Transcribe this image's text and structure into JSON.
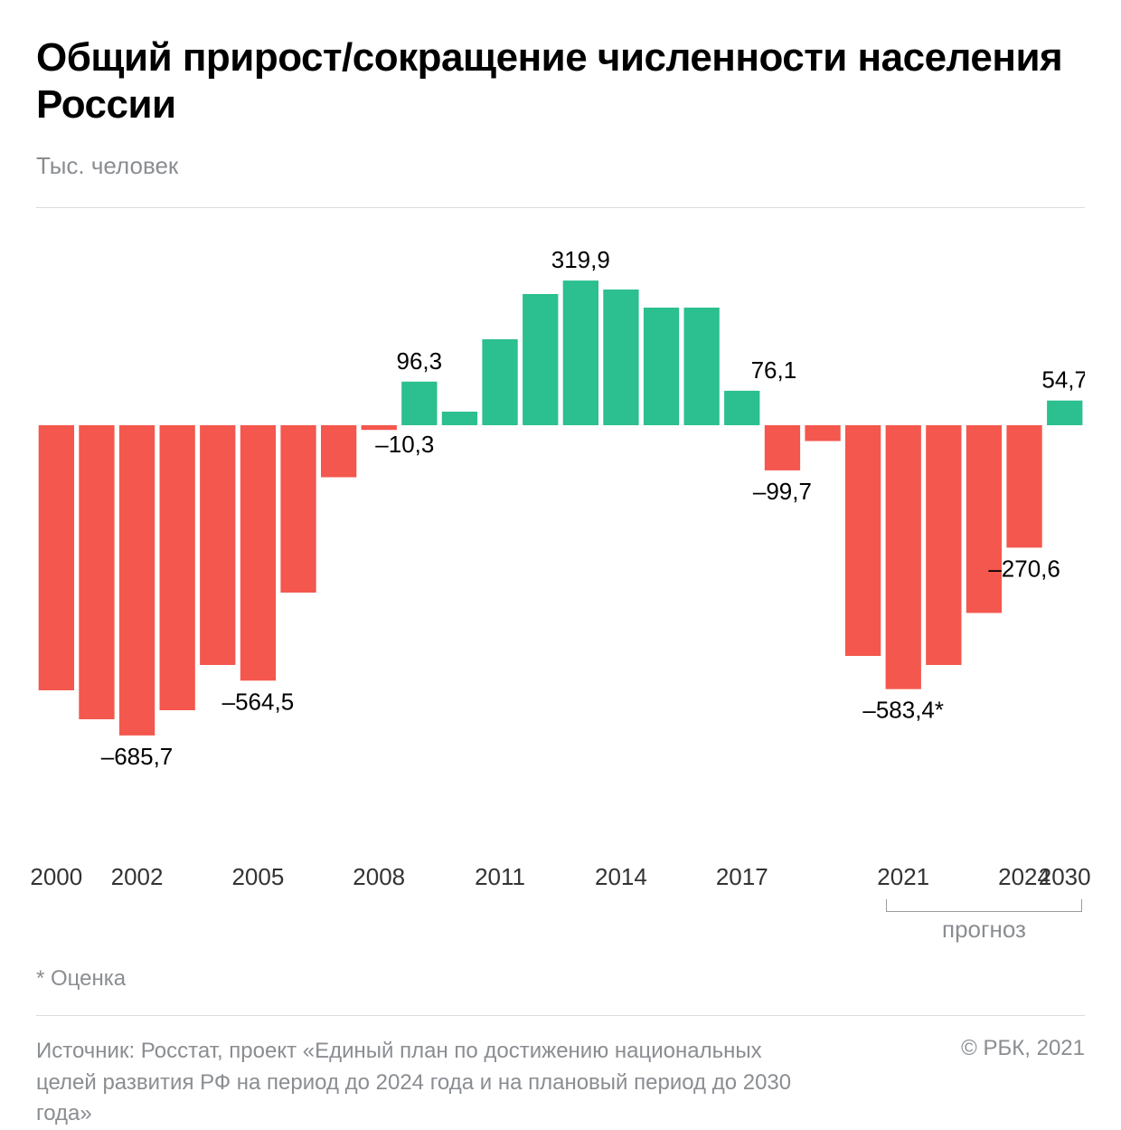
{
  "title": "Общий прирост/сокращение численности населения России",
  "subtitle": "Тыс. человек",
  "estimate_note": "* Оценка",
  "source_text": "Источник: Росстат, проект «Единый план по достижению национальных целей развития РФ на период до 2024 года и на плановый период до 2030 года»",
  "copyright": "© РБК, 2021",
  "forecast_label": "прогноз",
  "chart": {
    "type": "bar",
    "background_color": "#ffffff",
    "colors": {
      "positive": "#2cbf8f",
      "negative": "#f4574d"
    },
    "ylim": [
      -800,
      400
    ],
    "title_fontsize": 44,
    "label_fontsize": 26,
    "value_label_fontsize": 26,
    "value_label_color": "#000000",
    "axis_label_color": "#333333",
    "divider_color": "#d9dbdd",
    "bracket_color": "#9a9c9e",
    "bar_gap_ratio": 0.12,
    "forecast_start_index": 21,
    "forecast_end_index": 25,
    "x_axis_labels": [
      {
        "index": 0,
        "text": "2000"
      },
      {
        "index": 2,
        "text": "2002"
      },
      {
        "index": 5,
        "text": "2005"
      },
      {
        "index": 8,
        "text": "2008"
      },
      {
        "index": 11,
        "text": "2011"
      },
      {
        "index": 14,
        "text": "2014"
      },
      {
        "index": 17,
        "text": "2017"
      },
      {
        "index": 21,
        "text": "2021"
      },
      {
        "index": 24,
        "text": "2024"
      },
      {
        "index": 25,
        "text": "2030"
      }
    ],
    "value_labels": [
      {
        "index": 2,
        "text": "–685,7",
        "place": "below"
      },
      {
        "index": 5,
        "text": "–564,5",
        "place": "below"
      },
      {
        "index": 8,
        "text": "–10,3",
        "place": "below-tight"
      },
      {
        "index": 9,
        "text": "96,3",
        "place": "above"
      },
      {
        "index": 13,
        "text": "319,9",
        "place": "above"
      },
      {
        "index": 17,
        "text": "76,1",
        "place": "above-right"
      },
      {
        "index": 18,
        "text": "–99,7",
        "place": "below"
      },
      {
        "index": 21,
        "text": "–583,4*",
        "place": "below"
      },
      {
        "index": 24,
        "text": "–270,6",
        "place": "below"
      },
      {
        "index": 25,
        "text": "54,7",
        "place": "above"
      }
    ],
    "series": [
      {
        "year": 2000,
        "value": -586
      },
      {
        "year": 2001,
        "value": -650
      },
      {
        "year": 2002,
        "value": -685.7
      },
      {
        "year": 2003,
        "value": -630
      },
      {
        "year": 2004,
        "value": -530
      },
      {
        "year": 2005,
        "value": -564.5
      },
      {
        "year": 2006,
        "value": -370
      },
      {
        "year": 2007,
        "value": -115
      },
      {
        "year": 2008,
        "value": -10.3
      },
      {
        "year": 2009,
        "value": 96.3
      },
      {
        "year": 2010,
        "value": 30
      },
      {
        "year": 2011,
        "value": 190
      },
      {
        "year": 2012,
        "value": 290
      },
      {
        "year": 2013,
        "value": 319.9
      },
      {
        "year": 2014,
        "value": 300
      },
      {
        "year": 2015,
        "value": 260
      },
      {
        "year": 2016,
        "value": 260
      },
      {
        "year": 2017,
        "value": 76.1
      },
      {
        "year": 2018,
        "value": -99.7
      },
      {
        "year": 2019,
        "value": -35
      },
      {
        "year": 2020,
        "value": -510
      },
      {
        "year": 2021,
        "value": -583.4
      },
      {
        "year": 2022,
        "value": -530
      },
      {
        "year": 2023,
        "value": -415
      },
      {
        "year": 2024,
        "value": -270.6
      },
      {
        "year": 2030,
        "value": 54.7
      }
    ]
  }
}
